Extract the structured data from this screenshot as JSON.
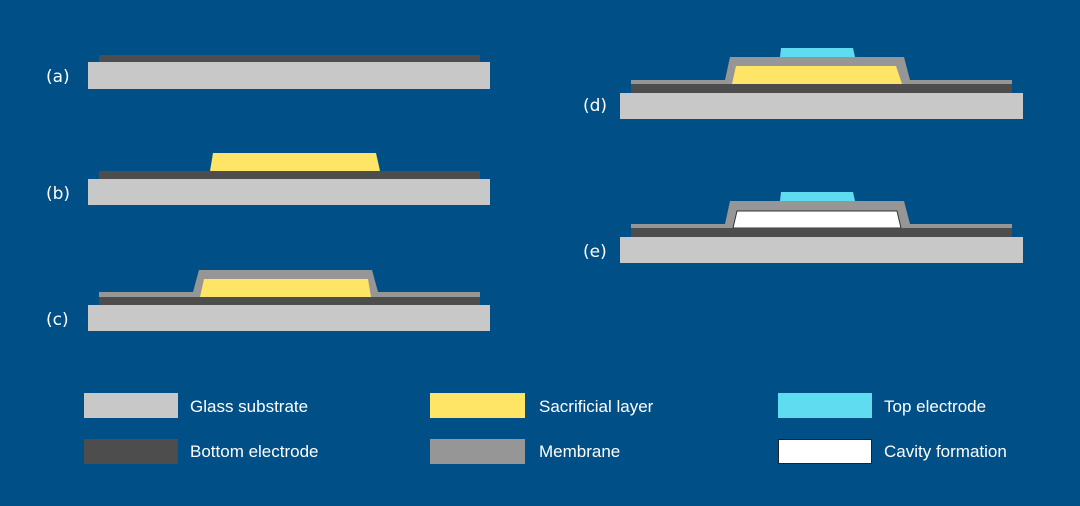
{
  "colors": {
    "background": "#005087",
    "glass_substrate": "#c8c8c8",
    "bottom_electrode": "#4d4d4d",
    "membrane": "#969696",
    "sacrificial_layer": "#ffe566",
    "top_electrode": "#5fdcef",
    "cavity": "#ffffff"
  },
  "steps": [
    {
      "label": "(a)"
    },
    {
      "label": "(b)"
    },
    {
      "label": "(c)"
    },
    {
      "label": "(d)"
    },
    {
      "label": "(e)"
    }
  ],
  "legend": [
    {
      "key": "glass_substrate",
      "label": "Glass substrate"
    },
    {
      "key": "bottom_electrode",
      "label": "Bottom electrode"
    },
    {
      "key": "sacrificial_layer",
      "label": "Sacrificial layer"
    },
    {
      "key": "membrane",
      "label": "Membrane"
    },
    {
      "key": "top_electrode",
      "label": "Top electrode"
    },
    {
      "key": "cavity",
      "label": "Cavity formation"
    }
  ]
}
